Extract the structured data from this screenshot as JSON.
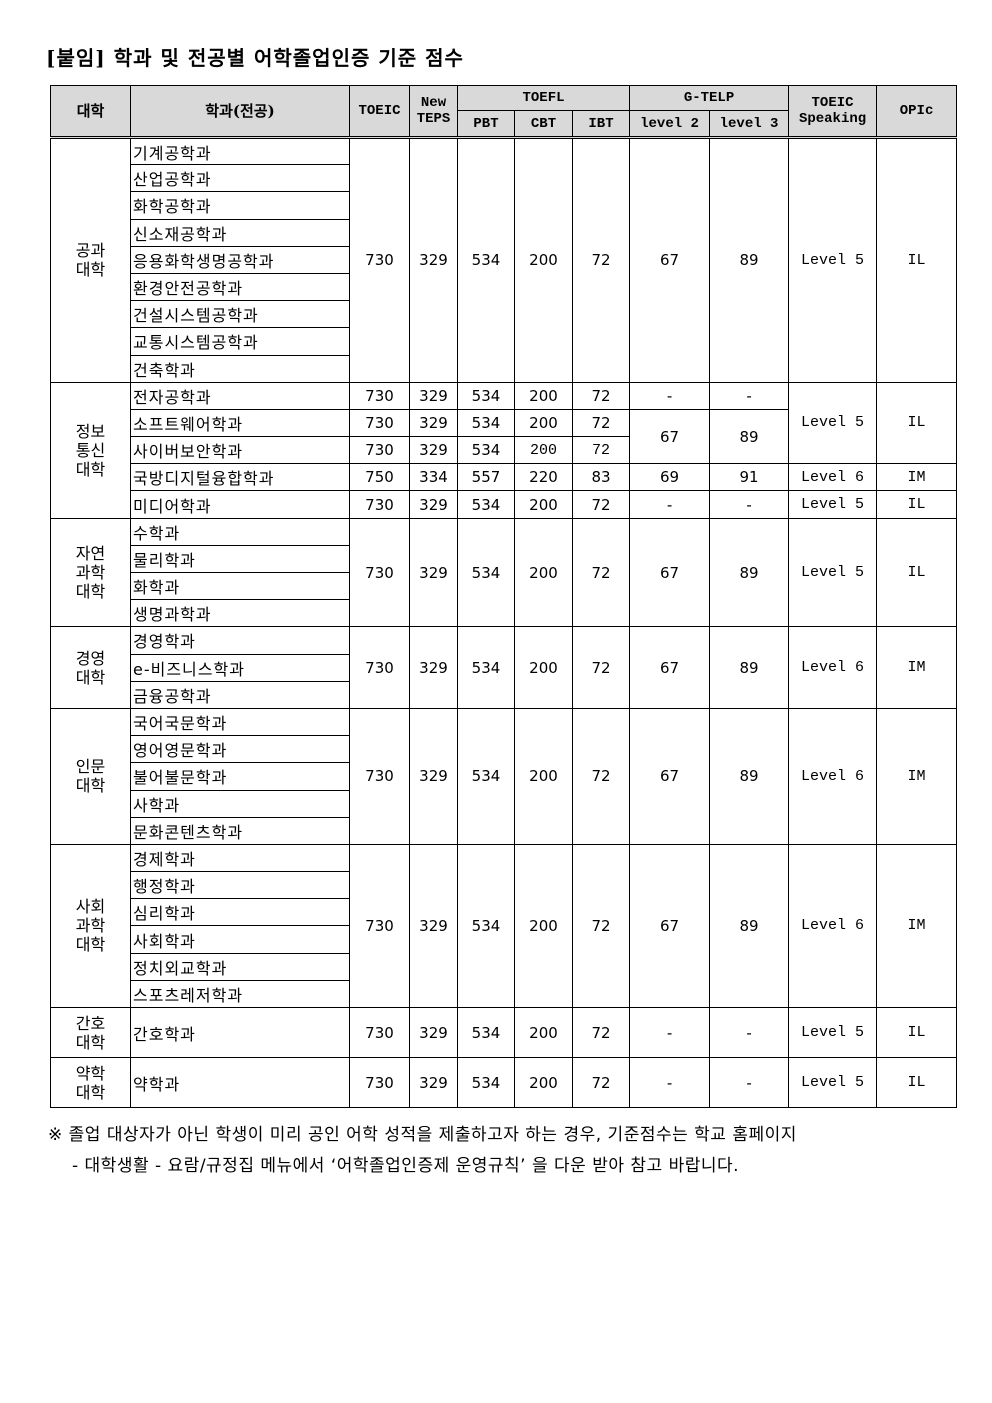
{
  "title": "[붙임] 학과 및 전공별 어학졸업인증 기준 점수",
  "header": {
    "college": "대학",
    "dept": "학과(전공)",
    "toeic": "TOEIC",
    "teps": "New TEPS",
    "toefl": "TOEFL",
    "gtelp": "G-TELP",
    "toeic_speaking": "TOEIC Speaking",
    "opic": "OPIc",
    "pbt": "PBT",
    "cbt": "CBT",
    "ibt": "IBT",
    "level2": "level 2",
    "level3": "level 3"
  },
  "groups": [
    {
      "college": "공과\n대학",
      "rows": [
        {
          "dept": "기계공학과",
          "cells": [
            {
              "v": "730",
              "rs": 9
            },
            {
              "v": "329",
              "rs": 9
            },
            {
              "v": "534",
              "rs": 9
            },
            {
              "v": "200",
              "rs": 9
            },
            {
              "v": "72",
              "rs": 9
            },
            {
              "v": "67",
              "rs": 9
            },
            {
              "v": "89",
              "rs": 9
            },
            {
              "v": "Level 5",
              "rs": 9
            },
            {
              "v": "IL",
              "rs": 9
            }
          ]
        },
        {
          "dept": "산업공학과",
          "cells": []
        },
        {
          "dept": "화학공학과",
          "cells": []
        },
        {
          "dept": "신소재공학과",
          "cells": []
        },
        {
          "dept": "응용화학생명공학과",
          "cells": []
        },
        {
          "dept": "환경안전공학과",
          "cells": []
        },
        {
          "dept": "건설시스템공학과",
          "cells": []
        },
        {
          "dept": "교통시스템공학과",
          "cells": []
        },
        {
          "dept": "건축학과",
          "cells": []
        }
      ]
    },
    {
      "college": "정보\n통신\n대학",
      "rows": [
        {
          "dept": "전자공학과",
          "cells": [
            {
              "v": "730"
            },
            {
              "v": "329"
            },
            {
              "v": "534"
            },
            {
              "v": "200"
            },
            {
              "v": "72"
            },
            {
              "v": "-"
            },
            {
              "v": "-"
            },
            {
              "v": "Level 5",
              "rs": 3
            },
            {
              "v": "IL",
              "rs": 3
            }
          ]
        },
        {
          "dept": "소프트웨어학과",
          "cells": [
            {
              "v": "730"
            },
            {
              "v": "329"
            },
            {
              "v": "534"
            },
            {
              "v": "200"
            },
            {
              "v": "72"
            },
            {
              "v": "67",
              "rs": 2
            },
            {
              "v": "89",
              "rs": 2
            }
          ]
        },
        {
          "dept": "사이버보안학과",
          "cells": [
            {
              "v": "730"
            },
            {
              "v": "329"
            },
            {
              "v": "534"
            },
            {
              "v": "200"
            },
            {
              "v": "72"
            }
          ]
        },
        {
          "dept": "국방디지털융합학과",
          "cells": [
            {
              "v": "750"
            },
            {
              "v": "334"
            },
            {
              "v": "557"
            },
            {
              "v": "220"
            },
            {
              "v": "83"
            },
            {
              "v": "69"
            },
            {
              "v": "91"
            },
            {
              "v": "Level 6"
            },
            {
              "v": "IM"
            }
          ]
        },
        {
          "dept": "미디어학과",
          "cells": [
            {
              "v": "730"
            },
            {
              "v": "329"
            },
            {
              "v": "534"
            },
            {
              "v": "200"
            },
            {
              "v": "72"
            },
            {
              "v": "-"
            },
            {
              "v": "-"
            },
            {
              "v": "Level 5"
            },
            {
              "v": "IL"
            }
          ]
        }
      ]
    },
    {
      "college": "자연\n과학\n대학",
      "rows": [
        {
          "dept": "수학과",
          "cells": [
            {
              "v": "730",
              "rs": 4
            },
            {
              "v": "329",
              "rs": 4
            },
            {
              "v": "534",
              "rs": 4
            },
            {
              "v": "200",
              "rs": 4
            },
            {
              "v": "72",
              "rs": 4
            },
            {
              "v": "67",
              "rs": 4
            },
            {
              "v": "89",
              "rs": 4
            },
            {
              "v": "Level 5",
              "rs": 4
            },
            {
              "v": "IL",
              "rs": 4
            }
          ]
        },
        {
          "dept": "물리학과",
          "cells": []
        },
        {
          "dept": "화학과",
          "cells": []
        },
        {
          "dept": "생명과학과",
          "cells": []
        }
      ]
    },
    {
      "college": "경영\n대학",
      "rows": [
        {
          "dept": "경영학과",
          "cells": [
            {
              "v": "730",
              "rs": 3
            },
            {
              "v": "329",
              "rs": 3
            },
            {
              "v": "534",
              "rs": 3
            },
            {
              "v": "200",
              "rs": 3
            },
            {
              "v": "72",
              "rs": 3
            },
            {
              "v": "67",
              "rs": 3
            },
            {
              "v": "89",
              "rs": 3
            },
            {
              "v": "Level 6",
              "rs": 3
            },
            {
              "v": "IM",
              "rs": 3
            }
          ]
        },
        {
          "dept": "e-비즈니스학과",
          "cells": []
        },
        {
          "dept": "금융공학과",
          "cells": []
        }
      ]
    },
    {
      "college": "인문\n대학",
      "rows": [
        {
          "dept": "국어국문학과",
          "cells": [
            {
              "v": "730",
              "rs": 5
            },
            {
              "v": "329",
              "rs": 5
            },
            {
              "v": "534",
              "rs": 5
            },
            {
              "v": "200",
              "rs": 5
            },
            {
              "v": "72",
              "rs": 5
            },
            {
              "v": "67",
              "rs": 5
            },
            {
              "v": "89",
              "rs": 5
            },
            {
              "v": "Level 6",
              "rs": 5
            },
            {
              "v": "IM",
              "rs": 5
            }
          ]
        },
        {
          "dept": "영어영문학과",
          "cells": []
        },
        {
          "dept": "불어불문학과",
          "cells": []
        },
        {
          "dept": "사학과",
          "cells": []
        },
        {
          "dept": "문화콘텐츠학과",
          "cells": []
        }
      ]
    },
    {
      "college": "사회\n과학\n대학",
      "rows": [
        {
          "dept": "경제학과",
          "cells": [
            {
              "v": "730",
              "rs": 6
            },
            {
              "v": "329",
              "rs": 6
            },
            {
              "v": "534",
              "rs": 6
            },
            {
              "v": "200",
              "rs": 6
            },
            {
              "v": "72",
              "rs": 6
            },
            {
              "v": "67",
              "rs": 6
            },
            {
              "v": "89",
              "rs": 6
            },
            {
              "v": "Level 6",
              "rs": 6
            },
            {
              "v": "IM",
              "rs": 6
            }
          ]
        },
        {
          "dept": "행정학과",
          "cells": []
        },
        {
          "dept": "심리학과",
          "cells": []
        },
        {
          "dept": "사회학과",
          "cells": []
        },
        {
          "dept": "정치외교학과",
          "cells": []
        },
        {
          "dept": "스포츠레저학과",
          "cells": []
        }
      ]
    },
    {
      "college": "간호\n대학",
      "rows": [
        {
          "dept": "간호학과",
          "cells": [
            {
              "v": "730"
            },
            {
              "v": "329"
            },
            {
              "v": "534"
            },
            {
              "v": "200"
            },
            {
              "v": "72"
            },
            {
              "v": "-"
            },
            {
              "v": "-"
            },
            {
              "v": "Level 5"
            },
            {
              "v": "IL"
            }
          ]
        }
      ]
    },
    {
      "college": "약학\n대학",
      "rows": [
        {
          "dept": "약학과",
          "cells": [
            {
              "v": "730"
            },
            {
              "v": "329"
            },
            {
              "v": "534"
            },
            {
              "v": "200"
            },
            {
              "v": "72"
            },
            {
              "v": "-"
            },
            {
              "v": "-"
            },
            {
              "v": "Level 5"
            },
            {
              "v": "IL"
            }
          ]
        }
      ]
    }
  ],
  "note": {
    "line1": "※ 졸업 대상자가 아닌 학생이 미리 공인 어학 성적을 제출하고자 하는 경우, 기준점수는 학교 홈페이지",
    "line2": "- 대학생활 - 요람/규정집 메뉴에서 ‘어학졸업인증제 운영규칙’ 을 다운 받아 참고 바랍니다."
  }
}
